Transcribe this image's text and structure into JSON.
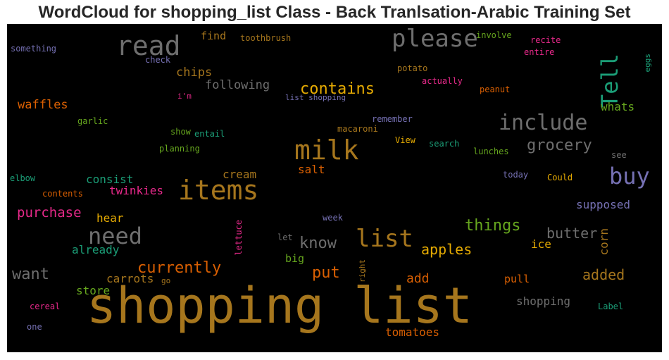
{
  "title": "WordCloud for shopping_list Class - Back Tranlsation-Arabic Training Set",
  "colors": {
    "gray": "#6e6e6e",
    "brown": "#a6761d",
    "orange": "#d95f02",
    "gold": "#e6ab02",
    "teal": "#1b9e77",
    "purple": "#7570b3",
    "pink": "#e7298a",
    "green": "#66a61e"
  },
  "words": [
    {
      "text": "shopping list",
      "color": "brown"
    },
    {
      "text": "items",
      "color": "brown"
    },
    {
      "text": "milk",
      "color": "brown"
    },
    {
      "text": "read",
      "color": "gray"
    },
    {
      "text": "please",
      "color": "gray"
    },
    {
      "text": "list",
      "color": "brown"
    },
    {
      "text": "need",
      "color": "gray"
    },
    {
      "text": "include",
      "color": "gray"
    },
    {
      "text": "buy",
      "color": "purple"
    },
    {
      "text": "Tell",
      "color": "teal",
      "vertical": true
    },
    {
      "text": "contains",
      "color": "gold"
    },
    {
      "text": "currently",
      "color": "orange"
    },
    {
      "text": "grocery",
      "color": "gray"
    },
    {
      "text": "things",
      "color": "green"
    },
    {
      "text": "know",
      "color": "gray"
    },
    {
      "text": "want",
      "color": "gray"
    },
    {
      "text": "put",
      "color": "orange"
    },
    {
      "text": "butter",
      "color": "gray"
    },
    {
      "text": "apples",
      "color": "gold"
    },
    {
      "text": "added",
      "color": "brown"
    },
    {
      "text": "purchase",
      "color": "pink"
    },
    {
      "text": "chips",
      "color": "brown"
    },
    {
      "text": "following",
      "color": "gray"
    },
    {
      "text": "waffles",
      "color": "orange"
    },
    {
      "text": "consist",
      "color": "teal"
    },
    {
      "text": "twinkies",
      "color": "pink"
    },
    {
      "text": "cream",
      "color": "brown"
    },
    {
      "text": "salt",
      "color": "orange"
    },
    {
      "text": "whats",
      "color": "green"
    },
    {
      "text": "hear",
      "color": "gold"
    },
    {
      "text": "already",
      "color": "teal"
    },
    {
      "text": "carrots",
      "color": "brown"
    },
    {
      "text": "add",
      "color": "orange"
    },
    {
      "text": "tomatoes",
      "color": "orange"
    },
    {
      "text": "shopping",
      "color": "gray"
    },
    {
      "text": "store",
      "color": "green"
    },
    {
      "text": "supposed",
      "color": "purple"
    },
    {
      "text": "corn",
      "color": "brown",
      "vertical": true
    },
    {
      "text": "ice",
      "color": "gold"
    },
    {
      "text": "big",
      "color": "green"
    },
    {
      "text": "pull",
      "color": "orange"
    },
    {
      "text": "find",
      "color": "brown"
    },
    {
      "text": "toothbrush",
      "color": "brown"
    },
    {
      "text": "involve",
      "color": "green"
    },
    {
      "text": "recite",
      "color": "pink"
    },
    {
      "text": "entire",
      "color": "pink"
    },
    {
      "text": "eggs",
      "color": "teal",
      "vertical": true
    },
    {
      "text": "something",
      "color": "purple"
    },
    {
      "text": "check",
      "color": "purple"
    },
    {
      "text": "potato",
      "color": "brown"
    },
    {
      "text": "actually",
      "color": "pink"
    },
    {
      "text": "peanut",
      "color": "orange"
    },
    {
      "text": "i'm",
      "color": "pink"
    },
    {
      "text": "list shopping",
      "color": "purple"
    },
    {
      "text": "remember",
      "color": "purple"
    },
    {
      "text": "garlic",
      "color": "green"
    },
    {
      "text": "macaroni",
      "color": "brown"
    },
    {
      "text": "show",
      "color": "green"
    },
    {
      "text": "entail",
      "color": "teal"
    },
    {
      "text": "View",
      "color": "gold"
    },
    {
      "text": "search",
      "color": "teal"
    },
    {
      "text": "planning",
      "color": "green"
    },
    {
      "text": "lunches",
      "color": "green"
    },
    {
      "text": "see",
      "color": "gray"
    },
    {
      "text": "elbow",
      "color": "teal"
    },
    {
      "text": "today",
      "color": "purple"
    },
    {
      "text": "Could",
      "color": "gold"
    },
    {
      "text": "contents",
      "color": "orange"
    },
    {
      "text": "week",
      "color": "purple"
    },
    {
      "text": "lettuce",
      "color": "pink",
      "vertical": true
    },
    {
      "text": "let",
      "color": "gray"
    },
    {
      "text": "right",
      "color": "brown",
      "vertical": true
    },
    {
      "text": "go",
      "color": "brown"
    },
    {
      "text": "cereal",
      "color": "pink"
    },
    {
      "text": "one",
      "color": "purple"
    },
    {
      "text": "Label",
      "color": "teal"
    }
  ]
}
